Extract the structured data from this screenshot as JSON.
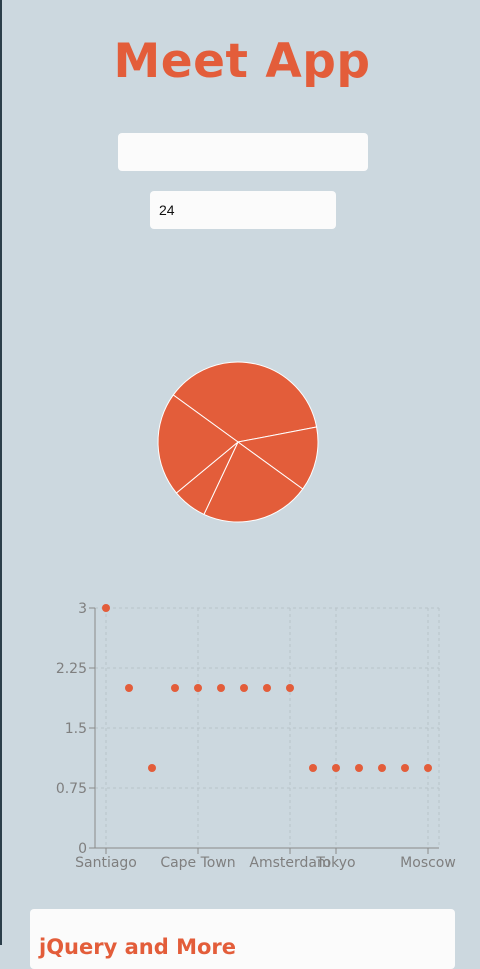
{
  "app": {
    "title": "Meet App"
  },
  "search": {
    "value": "",
    "placeholder": ""
  },
  "number_of_events": {
    "value": "24"
  },
  "event_card": {
    "title": "jQuery and More"
  },
  "colors": {
    "accent": "#e35d3a",
    "background": "#ccd8df",
    "input_bg": "#fbfbfb"
  },
  "chart_data": [
    {
      "type": "pie",
      "title": "",
      "slices": [
        {
          "label": "",
          "value": 37
        },
        {
          "label": "",
          "value": 13
        },
        {
          "label": "",
          "value": 22
        },
        {
          "label": "",
          "value": 7
        },
        {
          "label": "",
          "value": 21
        }
      ]
    },
    {
      "type": "scatter",
      "title": "",
      "xlabel": "",
      "ylabel": "",
      "ylim": [
        0,
        3
      ],
      "yticks": [
        "0",
        "0.75",
        "1.5",
        "2.25",
        "3"
      ],
      "x": [
        "Santiago",
        "",
        "",
        "",
        "Cape Town",
        "",
        "",
        "",
        "Amsterdam",
        "",
        "Tokyo",
        "",
        "",
        "",
        "Moscow"
      ],
      "xtick_labels": [
        "Santiago",
        "Cape Town",
        "Amsterdam",
        "Tokyo",
        "Moscow"
      ],
      "values": [
        3,
        2,
        1,
        2,
        2,
        2,
        2,
        2,
        2,
        1,
        1,
        1,
        1,
        1,
        1
      ],
      "grid": true
    }
  ]
}
